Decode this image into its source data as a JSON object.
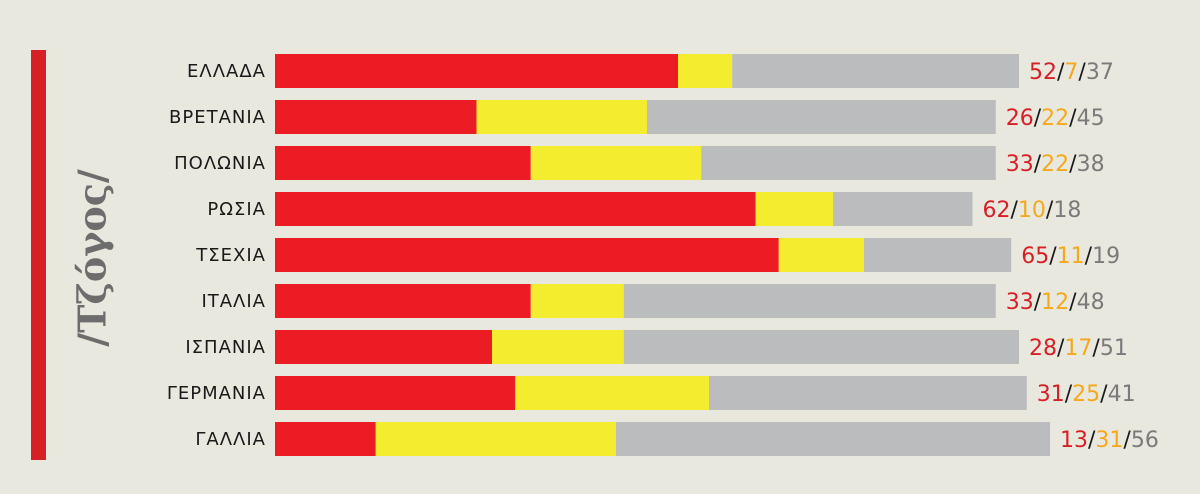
{
  "side_label": "/Τζόγος/",
  "colors": {
    "accent": "#d71f26",
    "seg1": "#ec1c24",
    "seg2": "#f4ec2e",
    "seg3": "#bbbcbe",
    "num1": "#d71f26",
    "num2": "#f4a81d",
    "num3": "#7a7a7a",
    "slash": "#1a1a1a"
  },
  "chart_data": {
    "type": "bar",
    "orientation": "horizontal",
    "stacked": true,
    "categories": [
      "ΕΛΛΑΔΑ",
      "ΒΡΕΤΑΝΙΑ",
      "ΠΟΛΩΝΙΑ",
      "ΡΩΣΙΑ",
      "ΤΣΕΧΙΑ",
      "ΙΤΑΛΙΑ",
      "ΙΣΠΑΝΙΑ",
      "ΓΕΡΜΑΝΙΑ",
      "ΓΑΛΛΙΑ"
    ],
    "series": [
      {
        "values": [
          52,
          26,
          33,
          62,
          65,
          33,
          28,
          31,
          13
        ]
      },
      {
        "values": [
          7,
          22,
          22,
          10,
          11,
          12,
          17,
          25,
          31
        ]
      },
      {
        "values": [
          37,
          45,
          38,
          18,
          19,
          48,
          51,
          41,
          56
        ]
      }
    ],
    "value_separator": "/",
    "grid": false
  }
}
